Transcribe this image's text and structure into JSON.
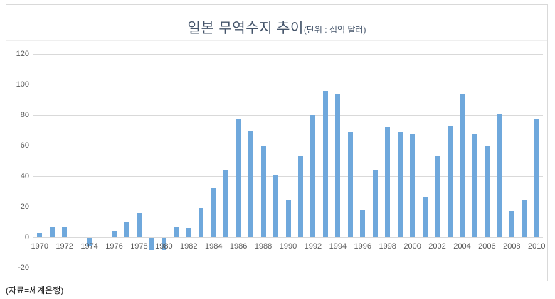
{
  "chart": {
    "title": "일본 무역수지 추이",
    "unit_label": "(단위 : 십억 달러)",
    "source_note": "(자료=세계은행)"
  },
  "colors": {
    "bar": "#6FA8DC",
    "gridline": "#D9D9D9",
    "axis_text": "#595959",
    "title_text": "#44546A",
    "frame_border": "#D9D9D9"
  },
  "chart_data": {
    "type": "bar",
    "title": "일본 무역수지 추이",
    "unit": "(단위 : 십억 달러)",
    "source": "(자료=세계은행)",
    "x": [
      1970,
      1971,
      1972,
      1973,
      1974,
      1975,
      1976,
      1977,
      1978,
      1979,
      1980,
      1981,
      1982,
      1983,
      1984,
      1985,
      1986,
      1987,
      1988,
      1989,
      1990,
      1991,
      1992,
      1993,
      1994,
      1995,
      1996,
      1997,
      1998,
      1999,
      2000,
      2001,
      2002,
      2003,
      2004,
      2005,
      2006,
      2007,
      2008,
      2009,
      2010
    ],
    "values": [
      3,
      7,
      7,
      0,
      -5,
      0,
      4,
      10,
      16,
      -8,
      -8,
      7,
      6,
      19,
      32,
      44,
      77,
      70,
      60,
      41,
      24,
      53,
      80,
      96,
      94,
      69,
      18,
      44,
      72,
      69,
      68,
      26,
      53,
      73,
      94,
      68,
      60,
      81,
      17,
      24,
      77
    ],
    "xticks": [
      1970,
      1972,
      1974,
      1976,
      1978,
      1980,
      1982,
      1984,
      1986,
      1988,
      1990,
      1992,
      1994,
      1996,
      1998,
      2000,
      2002,
      2004,
      2006,
      2008,
      2010
    ],
    "yticks": [
      120,
      100,
      80,
      60,
      40,
      20,
      0,
      -20
    ],
    "ylim": [
      -20,
      120
    ],
    "ytick_step": 20,
    "grid": true,
    "legend": false,
    "bar_color": "#6FA8DC"
  }
}
